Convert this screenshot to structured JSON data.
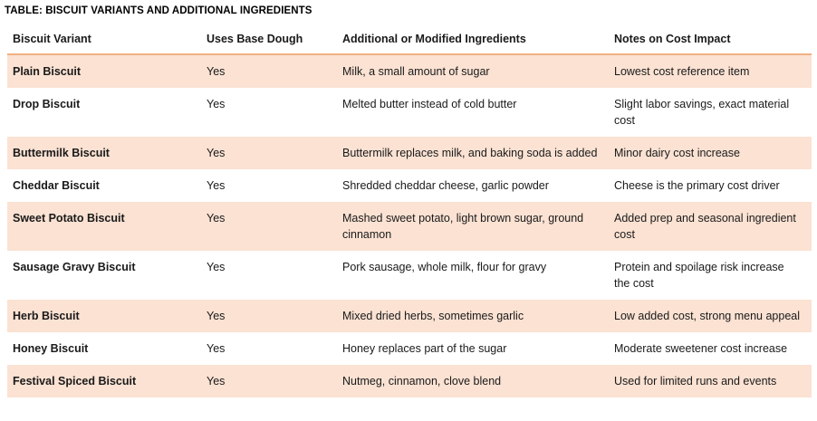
{
  "title": "TABLE: BISCUIT VARIANTS AND ADDITIONAL INGREDIENTS",
  "table": {
    "columns": [
      "Biscuit Variant",
      "Uses Base Dough",
      "Additional or Modified Ingredients",
      "Notes on Cost Impact"
    ],
    "rows": [
      {
        "variant": "Plain Biscuit",
        "uses_base_dough": "Yes",
        "ingredients": "Milk, a small amount of sugar",
        "notes": "Lowest cost reference item"
      },
      {
        "variant": "Drop Biscuit",
        "uses_base_dough": "Yes",
        "ingredients": "Melted butter instead of cold butter",
        "notes": "Slight labor savings, exact material cost"
      },
      {
        "variant": "Buttermilk Biscuit",
        "uses_base_dough": "Yes",
        "ingredients": "Buttermilk replaces milk, and baking soda is added",
        "notes": "Minor dairy cost increase"
      },
      {
        "variant": "Cheddar Biscuit",
        "uses_base_dough": "Yes",
        "ingredients": "Shredded cheddar cheese, garlic powder",
        "notes": "Cheese is the primary cost driver"
      },
      {
        "variant": "Sweet Potato Biscuit",
        "uses_base_dough": "Yes",
        "ingredients": "Mashed sweet potato, light brown sugar, ground cinnamon",
        "notes": "Added prep and seasonal ingredient cost"
      },
      {
        "variant": "Sausage Gravy Biscuit",
        "uses_base_dough": "Yes",
        "ingredients": "Pork sausage, whole milk, flour for gravy",
        "notes": "Protein and spoilage risk increase the cost"
      },
      {
        "variant": "Herb Biscuit",
        "uses_base_dough": "Yes",
        "ingredients": "Mixed dried herbs, sometimes garlic",
        "notes": "Low added cost, strong menu appeal"
      },
      {
        "variant": "Honey Biscuit",
        "uses_base_dough": "Yes",
        "ingredients": "Honey replaces part of the sugar",
        "notes": "Moderate sweetener cost increase"
      },
      {
        "variant": "Festival Spiced Biscuit",
        "uses_base_dough": "Yes",
        "ingredients": "Nutmeg, cinnamon, clove blend",
        "notes": "Used for limited runs and events"
      }
    ],
    "colors": {
      "band_fill": "#fbe2d3",
      "header_border": "#efb183",
      "text": "#1a1a1a"
    }
  }
}
